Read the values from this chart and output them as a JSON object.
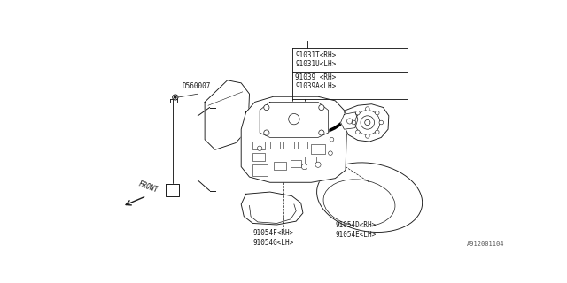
{
  "bg_color": "#ffffff",
  "line_color": "#1a1a1a",
  "diagram_id": "A912001104",
  "labels": {
    "top_label": "91031T<RH>\n91031U<LH>",
    "mid_label": "91039 <RH>\n91039A<LH>",
    "bottom_left_label": "91054F<RH>\n91054G<LH>",
    "bottom_right_label": "91054D<RH>\n91054E<LH>",
    "side_label": "D560007",
    "front_label": "FRONT"
  },
  "lw": 0.65
}
